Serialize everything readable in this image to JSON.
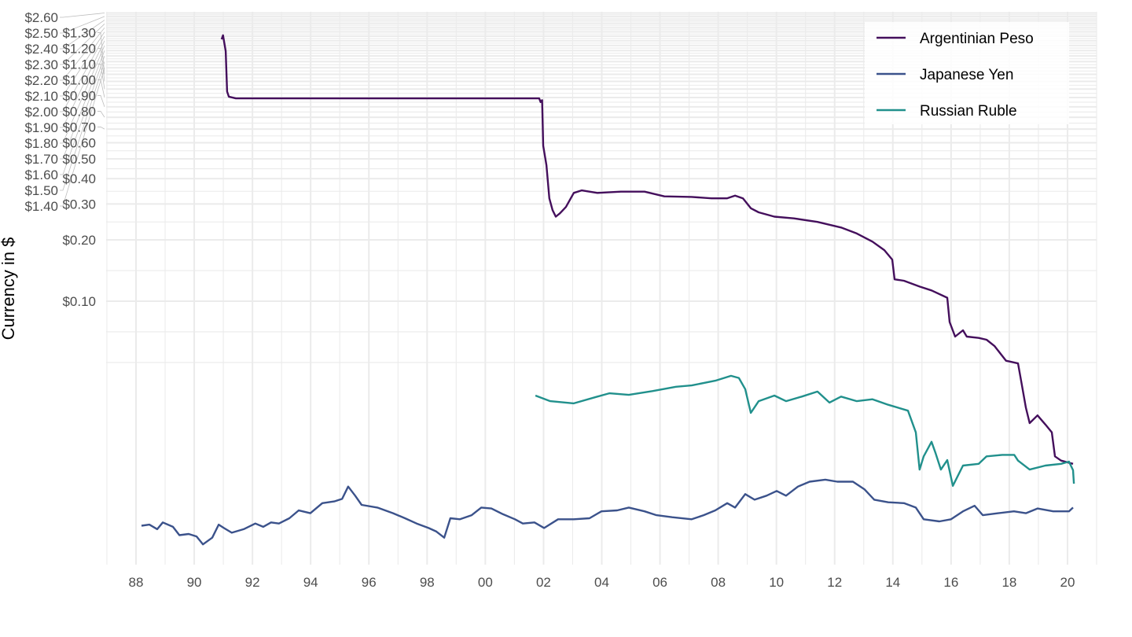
{
  "chart_data": {
    "type": "line",
    "title": "",
    "xlabel": "",
    "ylabel": "Currency in $",
    "y_scale": "log10",
    "xlim": [
      1987,
      2021
    ],
    "ylim": [
      0.0051,
      2.65
    ],
    "grid": true,
    "legend_position": "top-right",
    "x_ticks": [
      1988,
      1990,
      1992,
      1994,
      1996,
      1998,
      2000,
      2002,
      2004,
      2006,
      2008,
      2010,
      2012,
      2014,
      2016,
      2018,
      2020
    ],
    "x_tick_labels": [
      "88",
      "90",
      "92",
      "94",
      "96",
      "98",
      "00",
      "02",
      "04",
      "06",
      "08",
      "10",
      "12",
      "14",
      "16",
      "18",
      "20"
    ],
    "y_ticks": [
      0.1,
      0.2,
      0.3,
      0.4,
      0.5,
      0.6,
      0.7,
      0.8,
      0.9,
      1.0,
      1.1,
      1.2,
      1.3,
      1.4,
      1.5,
      1.6,
      1.7,
      1.8,
      1.9,
      2.0,
      2.1,
      2.2,
      2.3,
      2.4,
      2.5,
      2.6
    ],
    "y_tick_labels": [
      "$0.10",
      "$0.20",
      "$0.30",
      "$0.40",
      "$0.50",
      "$0.60",
      "$0.70",
      "$0.80",
      "$0.90",
      "$1.00",
      "$1.10",
      "$1.20",
      "$1.30",
      "$1.40",
      "$1.50",
      "$1.60",
      "$1.70",
      "$1.80",
      "$1.90",
      "$2.00",
      "$2.10",
      "$2.20",
      "$2.30",
      "$2.40",
      "$2.50",
      "$2.60"
    ],
    "series": [
      {
        "name": "Argentinian Peso",
        "color": "#440f5c",
        "x": [
          1990.94,
          1990.99,
          1991.08,
          1991.13,
          1991.19,
          1991.43,
          2001.85,
          2001.9,
          2001.95,
          2001.99,
          2002.1,
          2002.2,
          2002.31,
          2002.42,
          2002.56,
          2002.77,
          2003.04,
          2003.31,
          2003.85,
          2004.66,
          2005.47,
          2006.15,
          2007.09,
          2007.77,
          2008.3,
          2008.58,
          2008.85,
          2009.12,
          2009.39,
          2009.93,
          2010.6,
          2011.41,
          2012.22,
          2012.76,
          2013.3,
          2013.71,
          2013.98,
          2014.06,
          2014.38,
          2014.92,
          2015.33,
          2015.87,
          2015.95,
          2016.14,
          2016.41,
          2016.54,
          2016.95,
          2017.22,
          2017.49,
          2017.89,
          2018.3,
          2018.43,
          2018.57,
          2018.7,
          2018.97,
          2019.24,
          2019.46,
          2019.57,
          2019.78,
          2020.19
        ],
        "y": [
          1.93,
          2.02,
          1.69,
          1.07,
          1.01,
          0.99,
          0.99,
          0.95,
          0.97,
          0.58,
          0.466,
          0.32,
          0.28,
          0.26,
          0.27,
          0.29,
          0.34,
          0.35,
          0.34,
          0.345,
          0.345,
          0.327,
          0.325,
          0.32,
          0.32,
          0.33,
          0.32,
          0.286,
          0.273,
          0.26,
          0.255,
          0.245,
          0.23,
          0.215,
          0.196,
          0.178,
          0.16,
          0.128,
          0.126,
          0.118,
          0.113,
          0.104,
          0.079,
          0.067,
          0.072,
          0.067,
          0.066,
          0.0647,
          0.0603,
          0.051,
          0.0495,
          0.039,
          0.03,
          0.0252,
          0.0275,
          0.0248,
          0.0227,
          0.0173,
          0.0165,
          0.0159
        ]
      },
      {
        "name": "Japanese Yen",
        "color": "#3b528b",
        "x": [
          1988.19,
          1988.46,
          1988.73,
          1988.92,
          1989.27,
          1989.49,
          1989.81,
          1990.08,
          1990.3,
          1990.62,
          1990.84,
          1991.02,
          1991.29,
          1991.7,
          1992.1,
          1992.37,
          1992.64,
          1992.91,
          1993.27,
          1993.59,
          1993.99,
          1994.4,
          1994.81,
          1995.08,
          1995.29,
          1995.53,
          1995.75,
          1996.29,
          1996.83,
          1997.24,
          1997.64,
          1998.05,
          1998.32,
          1998.59,
          1998.8,
          1999.13,
          1999.53,
          1999.86,
          2000.21,
          2000.61,
          2001.02,
          2001.29,
          2001.69,
          2002.02,
          2002.5,
          2003.04,
          2003.58,
          2003.99,
          2004.53,
          2004.93,
          2005.47,
          2005.88,
          2006.42,
          2007.09,
          2007.5,
          2007.9,
          2008.31,
          2008.58,
          2008.93,
          2009.25,
          2009.66,
          2010.01,
          2010.33,
          2010.74,
          2011.14,
          2011.68,
          2012.09,
          2012.63,
          2013.03,
          2013.36,
          2013.84,
          2014.38,
          2014.79,
          2015.06,
          2015.6,
          2016.0,
          2016.41,
          2016.81,
          2017.09,
          2017.62,
          2018.16,
          2018.57,
          2018.97,
          2019.51,
          2020.05,
          2020.19
        ],
        "y": [
          0.0079,
          0.008,
          0.0076,
          0.0082,
          0.0078,
          0.0071,
          0.0072,
          0.007,
          0.0064,
          0.0069,
          0.008,
          0.0077,
          0.0073,
          0.0076,
          0.0081,
          0.0078,
          0.0082,
          0.0081,
          0.0086,
          0.0094,
          0.0091,
          0.0102,
          0.0104,
          0.0107,
          0.0123,
          0.0111,
          0.01,
          0.0097,
          0.0091,
          0.0086,
          0.0081,
          0.0077,
          0.0074,
          0.0069,
          0.0086,
          0.0085,
          0.0089,
          0.0097,
          0.0096,
          0.009,
          0.0085,
          0.0081,
          0.0082,
          0.0077,
          0.0085,
          0.0085,
          0.0086,
          0.0093,
          0.0094,
          0.0097,
          0.0093,
          0.0089,
          0.0087,
          0.0085,
          0.0089,
          0.0094,
          0.0102,
          0.0097,
          0.0113,
          0.0106,
          0.0111,
          0.0117,
          0.0111,
          0.0123,
          0.013,
          0.0133,
          0.013,
          0.013,
          0.0119,
          0.0106,
          0.0103,
          0.0102,
          0.0097,
          0.0085,
          0.0083,
          0.0085,
          0.0093,
          0.0099,
          0.0089,
          0.0091,
          0.0093,
          0.0091,
          0.0096,
          0.0093,
          0.0093,
          0.0097
        ]
      },
      {
        "name": "Russian Ruble",
        "color": "#21908c",
        "x": [
          2001.72,
          2002.23,
          2003.04,
          2003.85,
          2004.26,
          2004.93,
          2005.74,
          2006.55,
          2007.09,
          2007.9,
          2008.44,
          2008.71,
          2008.93,
          2009.12,
          2009.39,
          2009.93,
          2010.33,
          2010.87,
          2011.41,
          2011.82,
          2012.22,
          2012.76,
          2013.3,
          2013.84,
          2014.52,
          2014.79,
          2014.92,
          2015.06,
          2015.33,
          2015.46,
          2015.65,
          2015.87,
          2016.06,
          2016.41,
          2016.95,
          2017.22,
          2017.76,
          2018.17,
          2018.3,
          2018.7,
          2019.24,
          2019.78,
          2020.05,
          2020.19,
          2020.22
        ],
        "y": [
          0.0344,
          0.0323,
          0.0315,
          0.034,
          0.0353,
          0.0347,
          0.0362,
          0.038,
          0.0386,
          0.0407,
          0.043,
          0.042,
          0.037,
          0.0283,
          0.0323,
          0.0344,
          0.0323,
          0.034,
          0.036,
          0.0318,
          0.034,
          0.0323,
          0.033,
          0.031,
          0.029,
          0.0227,
          0.0149,
          0.0173,
          0.0204,
          0.0181,
          0.0149,
          0.0166,
          0.0124,
          0.0156,
          0.0159,
          0.0173,
          0.0176,
          0.0176,
          0.0165,
          0.0149,
          0.0156,
          0.0159,
          0.0163,
          0.0148,
          0.0127
        ]
      }
    ]
  },
  "legend": {
    "items": [
      "Argentinian Peso",
      "Japanese Yen",
      "Russian Ruble"
    ]
  }
}
